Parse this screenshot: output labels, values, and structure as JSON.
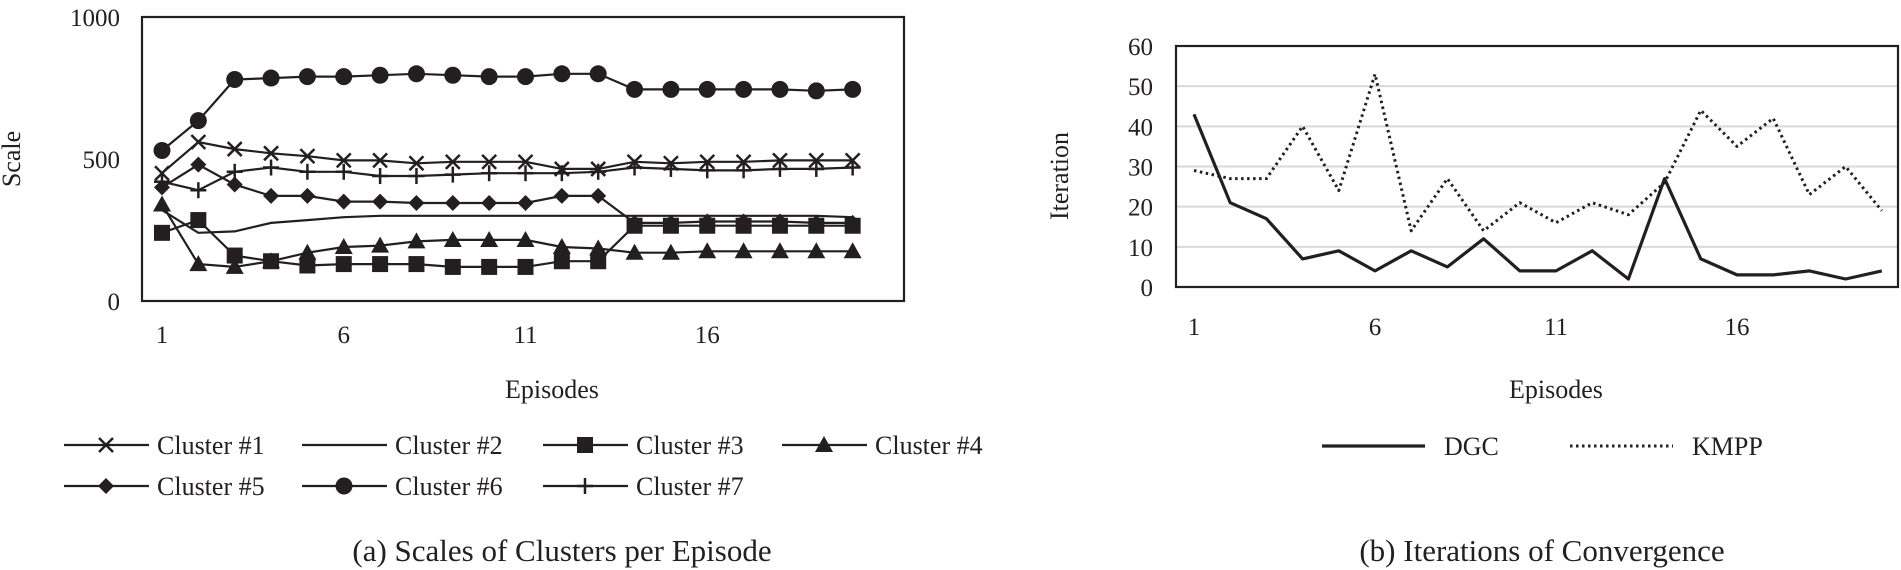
{
  "chart_data": [
    {
      "type": "line",
      "caption": "(a) Scales of Clusters per Episode",
      "xlabel": "Episodes",
      "ylabel": "Scale",
      "x": [
        1,
        2,
        3,
        4,
        5,
        6,
        7,
        8,
        9,
        10,
        11,
        12,
        13,
        14,
        15,
        16,
        17,
        18,
        19,
        20
      ],
      "x_ticks": [
        "1",
        "6",
        "11",
        "16"
      ],
      "y_ticks": [
        "0",
        "500",
        "1000"
      ],
      "ylim": [
        0,
        1000
      ],
      "grid": false,
      "legend_position": "bottom",
      "series": [
        {
          "name": "Cluster #1",
          "marker": "x",
          "values": [
            450,
            560,
            535,
            520,
            510,
            495,
            495,
            485,
            490,
            490,
            490,
            465,
            465,
            490,
            485,
            490,
            490,
            495,
            495,
            495
          ]
        },
        {
          "name": "Cluster #2",
          "marker": "none",
          "values": [
            320,
            240,
            245,
            275,
            285,
            295,
            300,
            300,
            300,
            300,
            300,
            300,
            300,
            300,
            300,
            300,
            300,
            300,
            300,
            295
          ]
        },
        {
          "name": "Cluster #3",
          "marker": "square",
          "values": [
            240,
            285,
            160,
            140,
            125,
            130,
            130,
            130,
            120,
            120,
            120,
            140,
            140,
            265,
            265,
            265,
            265,
            265,
            265,
            265
          ]
        },
        {
          "name": "Cluster #4",
          "marker": "triangle",
          "values": [
            340,
            130,
            120,
            140,
            170,
            190,
            195,
            210,
            215,
            215,
            215,
            190,
            185,
            170,
            170,
            175,
            175,
            175,
            175,
            175
          ]
        },
        {
          "name": "Cluster #5",
          "marker": "diamond",
          "values": [
            400,
            480,
            410,
            370,
            370,
            350,
            350,
            345,
            345,
            345,
            345,
            370,
            370,
            275,
            275,
            280,
            280,
            280,
            275,
            275
          ]
        },
        {
          "name": "Cluster #6",
          "marker": "circle",
          "values": [
            530,
            635,
            780,
            785,
            790,
            790,
            795,
            800,
            795,
            790,
            790,
            800,
            800,
            745,
            745,
            745,
            745,
            745,
            740,
            745
          ]
        },
        {
          "name": "Cluster #7",
          "marker": "plus",
          "values": [
            420,
            390,
            455,
            470,
            455,
            455,
            440,
            440,
            445,
            450,
            450,
            450,
            455,
            470,
            465,
            460,
            460,
            465,
            465,
            470
          ]
        }
      ]
    },
    {
      "type": "line",
      "caption": "(b) Iterations of Convergence",
      "xlabel": "Episodes",
      "ylabel": "Iteration",
      "x": [
        1,
        2,
        3,
        4,
        5,
        6,
        7,
        8,
        9,
        10,
        11,
        12,
        13,
        14,
        15,
        16,
        17,
        18,
        19,
        20
      ],
      "x_ticks": [
        "1",
        "6",
        "11",
        "16"
      ],
      "y_ticks": [
        "0",
        "10",
        "20",
        "30",
        "40",
        "50",
        "60"
      ],
      "ylim": [
        0,
        60
      ],
      "grid": true,
      "legend_position": "bottom",
      "series": [
        {
          "name": "DGC",
          "style": "solid",
          "values": [
            43,
            21,
            17,
            7,
            9,
            4,
            9,
            5,
            12,
            4,
            4,
            9,
            2,
            27,
            7,
            3,
            3,
            4,
            2,
            4
          ]
        },
        {
          "name": "KMPP",
          "style": "dotted",
          "values": [
            29,
            27,
            27,
            40,
            24,
            53,
            14,
            27,
            14,
            21,
            16,
            21,
            18,
            26,
            44,
            35,
            42,
            23,
            30,
            19
          ]
        }
      ]
    }
  ],
  "colors": {
    "ink": "#231f20",
    "grid": "#d9d9d9"
  }
}
